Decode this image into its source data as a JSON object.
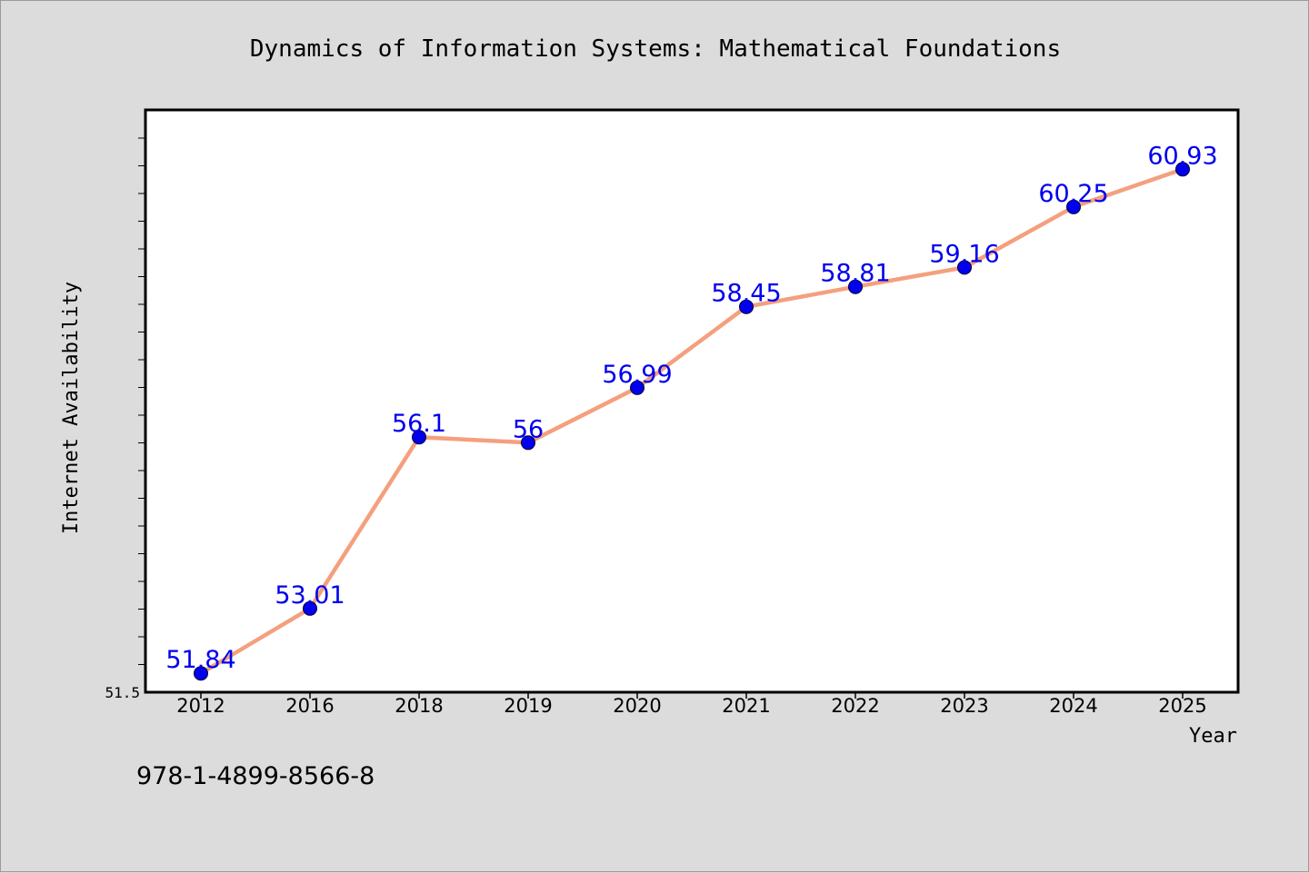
{
  "chart_data": {
    "type": "line",
    "title": "Dynamics of Information Systems: Mathematical Foundations",
    "xlabel": "Year",
    "ylabel": "Internet Availability",
    "categories": [
      "2012",
      "2016",
      "2018",
      "2019",
      "2020",
      "2021",
      "2022",
      "2023",
      "2024",
      "2025"
    ],
    "series": [
      {
        "values": [
          51.84,
          53.01,
          56.1,
          56,
          56.99,
          58.45,
          58.81,
          59.16,
          60.25,
          60.93
        ],
        "data_labels": [
          "51.84",
          "53.01",
          "56.1",
          "56",
          "56.99",
          "58.45",
          "58.81",
          "59.16",
          "60.25",
          "60.93"
        ]
      }
    ],
    "ylim": [
      51.5,
      62
    ],
    "y_tick_labels": [
      "51.5"
    ],
    "grid": false,
    "legend": "none",
    "colors": {
      "line": "#f4a07e",
      "marker": "#0000ee",
      "marker_edge": "#000033",
      "data_label": "#0000ee",
      "plot_background": "#ffffff",
      "figure_background": "#dcdcdc"
    }
  },
  "footer": {
    "isbn": "978-1-4899-8566-8"
  }
}
